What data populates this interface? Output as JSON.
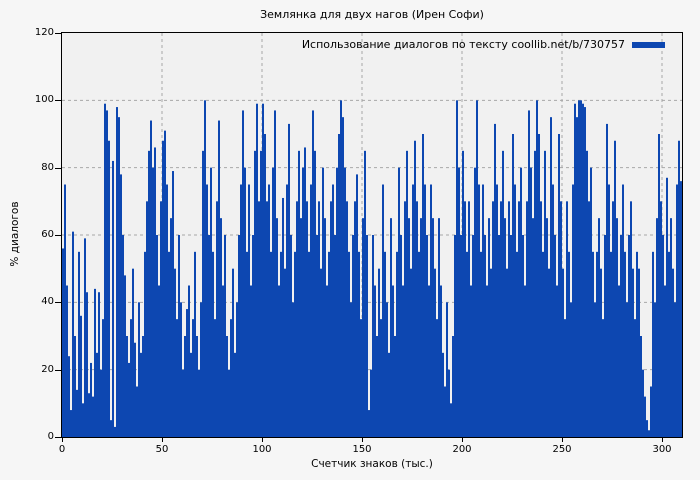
{
  "chart_data": {
    "type": "bar",
    "title": "Землянка для двух нагов (Ирен Софи)",
    "legend_label": "Использование диалогов по тексту coollib.net/b/730757",
    "legend_position": "top-right",
    "xlabel": "Счетчик знаков (тыс.)",
    "ylabel": "% диалогов",
    "xlim": [
      0,
      310
    ],
    "ylim": [
      0,
      120
    ],
    "xticks": [
      0,
      50,
      100,
      150,
      200,
      250,
      300
    ],
    "yticks": [
      0,
      20,
      40,
      60,
      80,
      100,
      120
    ],
    "grid": true,
    "grid_style": "dashed",
    "bar_color": "#0d47b1",
    "plot_bg": "#f1f1f1",
    "page_bg": "#f6f6f6",
    "grid_color": "#a8a8a8",
    "x_start": 0,
    "x_step": 1,
    "values": [
      56,
      75,
      45,
      24,
      8,
      61,
      30,
      14,
      55,
      36,
      10,
      59,
      43,
      13,
      22,
      12,
      44,
      25,
      43,
      20,
      35,
      99,
      97,
      88,
      5,
      82,
      3,
      98,
      95,
      78,
      60,
      48,
      30,
      22,
      35,
      50,
      28,
      15,
      40,
      25,
      30,
      55,
      70,
      85,
      94,
      80,
      86,
      60,
      45,
      70,
      88,
      91,
      75,
      55,
      65,
      79,
      50,
      35,
      60,
      40,
      20,
      30,
      38,
      45,
      25,
      35,
      55,
      30,
      20,
      40,
      85,
      100,
      75,
      60,
      80,
      55,
      35,
      70,
      94,
      65,
      45,
      60,
      30,
      20,
      35,
      50,
      25,
      40,
      60,
      75,
      97,
      80,
      55,
      75,
      45,
      60,
      85,
      99,
      70,
      85,
      99,
      90,
      70,
      75,
      55,
      80,
      97,
      65,
      45,
      55,
      71,
      50,
      75,
      93,
      60,
      40,
      55,
      70,
      85,
      65,
      80,
      86,
      70,
      55,
      75,
      97,
      85,
      60,
      70,
      50,
      80,
      65,
      45,
      55,
      70,
      75,
      60,
      80,
      90,
      100,
      95,
      80,
      70,
      55,
      40,
      60,
      70,
      78,
      55,
      35,
      65,
      85,
      60,
      8,
      20,
      60,
      45,
      30,
      50,
      35,
      75,
      55,
      40,
      25,
      65,
      45,
      30,
      55,
      80,
      60,
      45,
      70,
      85,
      65,
      50,
      75,
      88,
      70,
      55,
      65,
      90,
      75,
      60,
      45,
      75,
      65,
      50,
      35,
      65,
      45,
      25,
      15,
      40,
      20,
      10,
      30,
      60,
      100,
      80,
      60,
      85,
      70,
      55,
      70,
      45,
      60,
      80,
      100,
      75,
      55,
      75,
      60,
      45,
      65,
      50,
      70,
      93,
      75,
      60,
      70,
      85,
      65,
      50,
      70,
      60,
      90,
      75,
      55,
      70,
      80,
      60,
      45,
      70,
      97,
      80,
      65,
      85,
      100,
      90,
      70,
      55,
      85,
      65,
      50,
      95,
      75,
      60,
      45,
      90,
      70,
      50,
      35,
      70,
      55,
      40,
      75,
      99,
      95,
      100,
      100,
      99,
      98,
      85,
      70,
      80,
      55,
      40,
      55,
      65,
      50,
      35,
      60,
      93,
      75,
      55,
      70,
      88,
      65,
      45,
      60,
      75,
      55,
      40,
      60,
      70,
      50,
      35,
      55,
      50,
      30,
      20,
      12,
      5,
      2,
      15,
      55,
      40,
      65,
      90,
      70,
      60,
      45,
      77,
      55,
      65,
      50,
      40,
      75,
      88,
      76
    ]
  }
}
